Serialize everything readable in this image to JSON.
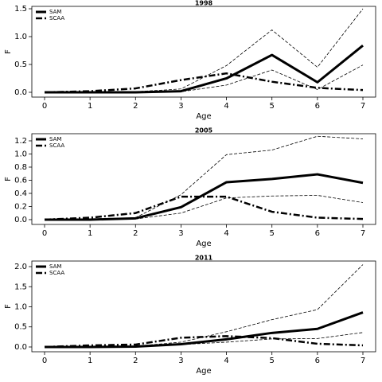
{
  "chart_data": [
    {
      "type": "line",
      "title": "1998",
      "xlabel": "Age",
      "ylabel": "F",
      "legend": "upper left",
      "x": [
        0,
        1,
        2,
        3,
        4,
        5,
        6,
        7
      ],
      "xlim": [
        -0.28,
        7.28
      ],
      "xticks": [
        0,
        1,
        2,
        3,
        4,
        5,
        6,
        7
      ],
      "ylim": [
        -0.086,
        1.543
      ],
      "yticks": [
        {
          "value": 0,
          "label": "0.0"
        },
        {
          "value": 0.5,
          "label": "0.5"
        },
        {
          "value": 1,
          "label": "1.0"
        },
        {
          "value": 1.5,
          "label": "1.5"
        }
      ],
      "series": [
        {
          "name": "SAM",
          "color": "#000000",
          "dash": "solid",
          "width": 3,
          "values": [
            0,
            0,
            0,
            0.02,
            0.25,
            0.67,
            0.18,
            0.84
          ]
        },
        {
          "name": "SCAA",
          "color": "#000000",
          "dash": "dashdot",
          "width": 2.5,
          "values": [
            0,
            0.02,
            0.07,
            0.22,
            0.34,
            0.19,
            0.08,
            0.04
          ]
        },
        {
          "color": "#000000",
          "dash": "dashed",
          "width": 0.8,
          "values": [
            0,
            0,
            0.01,
            0.06,
            0.48,
            1.12,
            0.45,
            1.5
          ]
        },
        {
          "color": "#000000",
          "dash": "dashed",
          "width": 0.8,
          "values": [
            0,
            0,
            0,
            0.01,
            0.13,
            0.4,
            0.05,
            0.49
          ]
        }
      ]
    },
    {
      "type": "line",
      "title": "2005",
      "xlabel": "Age",
      "ylabel": "F",
      "legend": "upper left",
      "x": [
        0,
        1,
        2,
        3,
        4,
        5,
        6,
        7
      ],
      "xlim": [
        -0.28,
        7.28
      ],
      "xticks": [
        0,
        1,
        2,
        3,
        4,
        5,
        6,
        7
      ],
      "ylim": [
        -0.073,
        1.309
      ],
      "yticks": [
        {
          "value": 0,
          "label": "0.0"
        },
        {
          "value": 0.2,
          "label": "0.2"
        },
        {
          "value": 0.4,
          "label": "0.4"
        },
        {
          "value": 0.6,
          "label": "0.6"
        },
        {
          "value": 0.8,
          "label": "0.8"
        },
        {
          "value": 1,
          "label": "1.0"
        },
        {
          "value": 1.2,
          "label": "1.2"
        }
      ],
      "series": [
        {
          "name": "SAM",
          "color": "#000000",
          "dash": "solid",
          "width": 3,
          "values": [
            0,
            0,
            0.02,
            0.19,
            0.57,
            0.62,
            0.69,
            0.56
          ]
        },
        {
          "name": "SCAA",
          "color": "#000000",
          "dash": "dashdot",
          "width": 2.5,
          "values": [
            0,
            0.03,
            0.1,
            0.35,
            0.35,
            0.12,
            0.03,
            0.01
          ]
        },
        {
          "color": "#000000",
          "dash": "dashed",
          "width": 0.8,
          "values": [
            0,
            0,
            0.03,
            0.38,
            0.99,
            1.06,
            1.27,
            1.23
          ]
        },
        {
          "color": "#000000",
          "dash": "dashed",
          "width": 0.8,
          "values": [
            0,
            0,
            0.01,
            0.1,
            0.33,
            0.36,
            0.37,
            0.26
          ]
        }
      ]
    },
    {
      "type": "line",
      "title": "2011",
      "xlabel": "Age",
      "ylabel": "F",
      "legend": "upper left",
      "x": [
        0,
        1,
        2,
        3,
        4,
        5,
        6,
        7
      ],
      "xlim": [
        -0.28,
        7.28
      ],
      "xticks": [
        0,
        1,
        2,
        3,
        4,
        5,
        6,
        7
      ],
      "ylim": [
        -0.119,
        2.139
      ],
      "yticks": [
        {
          "value": 0,
          "label": "0.0"
        },
        {
          "value": 0.5,
          "label": "0.5"
        },
        {
          "value": 1,
          "label": "1.0"
        },
        {
          "value": 1.5,
          "label": "1.5"
        },
        {
          "value": 2,
          "label": "2.0"
        }
      ],
      "series": [
        {
          "name": "SAM",
          "color": "#000000",
          "dash": "solid",
          "width": 3,
          "values": [
            0,
            0,
            0.01,
            0.07,
            0.19,
            0.35,
            0.45,
            0.86
          ]
        },
        {
          "name": "SCAA",
          "color": "#000000",
          "dash": "dashdot",
          "width": 2.5,
          "values": [
            0,
            0.04,
            0.06,
            0.23,
            0.27,
            0.22,
            0.08,
            0.04
          ]
        },
        {
          "color": "#000000",
          "dash": "dashed",
          "width": 0.8,
          "values": [
            0,
            0,
            0.02,
            0.12,
            0.38,
            0.68,
            0.93,
            2.05
          ]
        },
        {
          "color": "#000000",
          "dash": "dashed",
          "width": 0.8,
          "values": [
            0,
            0,
            0,
            0.06,
            0.12,
            0.2,
            0.21,
            0.36
          ]
        }
      ]
    }
  ]
}
